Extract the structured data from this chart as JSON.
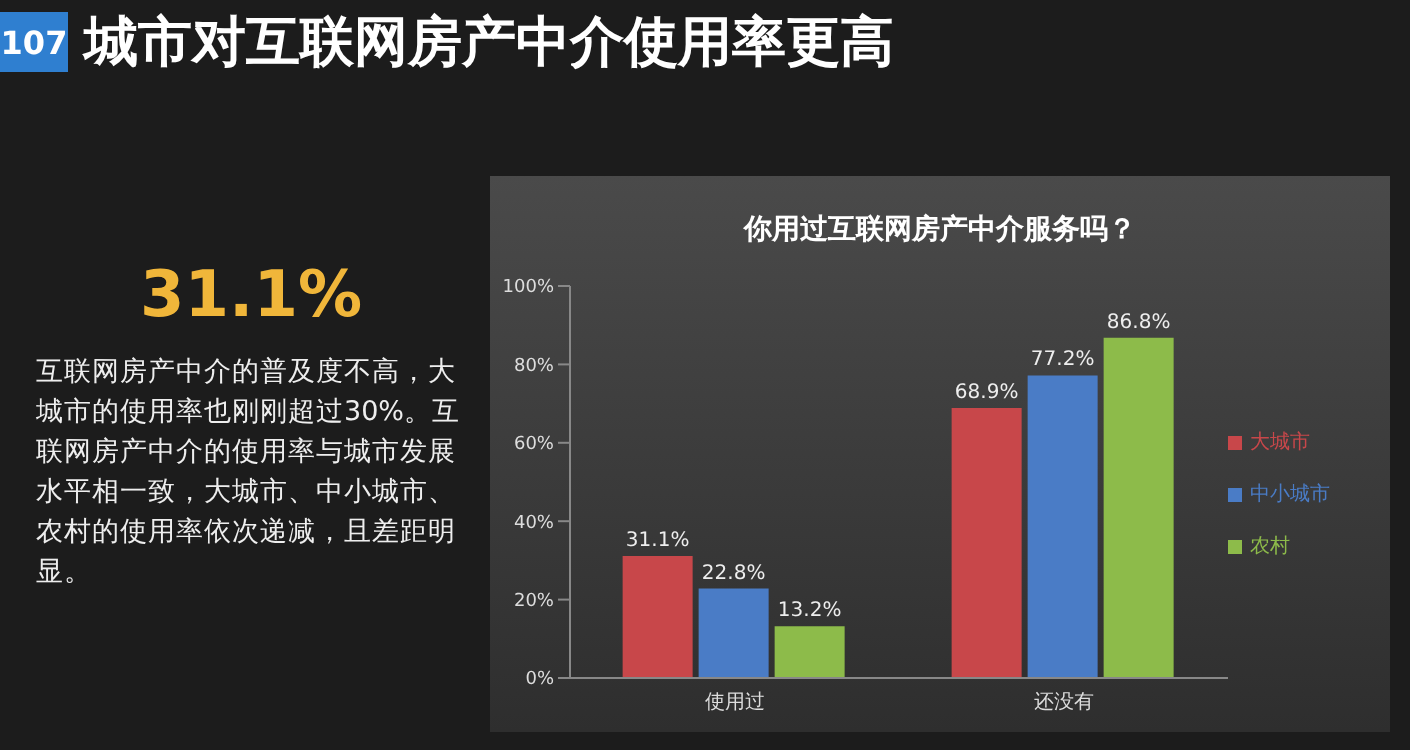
{
  "chart_data": {
    "type": "bar",
    "title": "城市对互联网房产中介使用率更高",
    "subtitle": "你用过互联网房产中介服务吗？",
    "annotations": [
      "107",
      "31.1%",
      "互联网房产中介的普及度不高，大城市的使用率也刚刚超过30%。互联网房产中介的使用率与城市发展水平相一致，大城市、中小城市、农村的使用率依次递减，且差距明显。"
    ],
    "categories": [
      "使用过",
      "还没有"
    ],
    "series": [
      {
        "name": "大城市",
        "color": "#c8474a",
        "values": [
          31.1,
          68.9
        ],
        "value_labels": [
          "31.1%",
          "68.9%"
        ]
      },
      {
        "name": "中小城市",
        "color": "#4a7cc6",
        "values": [
          22.8,
          77.2
        ],
        "value_labels": [
          "22.8%",
          "77.2%"
        ]
      },
      {
        "name": "农村",
        "color": "#8dbb4a",
        "values": [
          13.2,
          86.8
        ],
        "value_labels": [
          "13.2%",
          "86.8%"
        ]
      }
    ],
    "ylim": [
      0,
      100
    ],
    "yticks": [
      {
        "value": 0,
        "label": "0%"
      },
      {
        "value": 20,
        "label": "20%"
      },
      {
        "value": 40,
        "label": "40%"
      },
      {
        "value": 60,
        "label": "60%"
      },
      {
        "value": 80,
        "label": "80%"
      },
      {
        "value": 100,
        "label": "100%"
      }
    ],
    "legend": "right"
  }
}
